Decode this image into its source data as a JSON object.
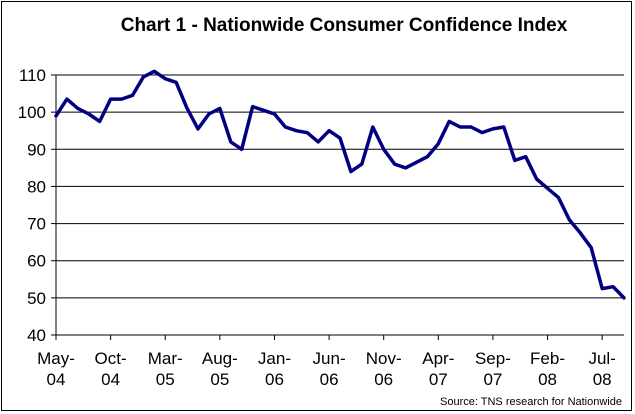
{
  "chart_data": {
    "type": "line",
    "title": "Chart 1 - Nationwide Consumer Confidence Index",
    "xlabel": "",
    "ylabel": "",
    "ylim": [
      40,
      110
    ],
    "yticks": [
      40,
      50,
      60,
      70,
      80,
      90,
      100,
      110
    ],
    "x_tick_labels": [
      {
        "line1": "May-",
        "line2": "04",
        "index": 0
      },
      {
        "line1": "Oct-",
        "line2": "04",
        "index": 5
      },
      {
        "line1": "Mar-",
        "line2": "05",
        "index": 10
      },
      {
        "line1": "Aug-",
        "line2": "05",
        "index": 15
      },
      {
        "line1": "Jan-",
        "line2": "06",
        "index": 20
      },
      {
        "line1": "Jun-",
        "line2": "06",
        "index": 25
      },
      {
        "line1": "Nov-",
        "line2": "06",
        "index": 30
      },
      {
        "line1": "Apr-",
        "line2": "07",
        "index": 35
      },
      {
        "line1": "Sep-",
        "line2": "07",
        "index": 40
      },
      {
        "line1": "Feb-",
        "line2": "08",
        "index": 45
      },
      {
        "line1": "Jul-",
        "line2": "08",
        "index": 50
      }
    ],
    "grid": "horizontal",
    "legend": "none",
    "line_color": "#000080",
    "series": [
      {
        "values": [
          99,
          103.5,
          101,
          99.5,
          97.5,
          103.5,
          103.5,
          104.5,
          109.5,
          111,
          109,
          108,
          101,
          95.5,
          99.5,
          101,
          92,
          90,
          101.5,
          100.5,
          99.5,
          96,
          95,
          94.5,
          92,
          95,
          93,
          84,
          86,
          96,
          90,
          86,
          85,
          86.5,
          88,
          91.5,
          97.5,
          96,
          96,
          94.5,
          95.5,
          96,
          87,
          88,
          82,
          79.5,
          77,
          71,
          67.5,
          63.5,
          52.5,
          53,
          50
        ]
      }
    ]
  },
  "source_note": "Source: TNS research for Nationwide"
}
